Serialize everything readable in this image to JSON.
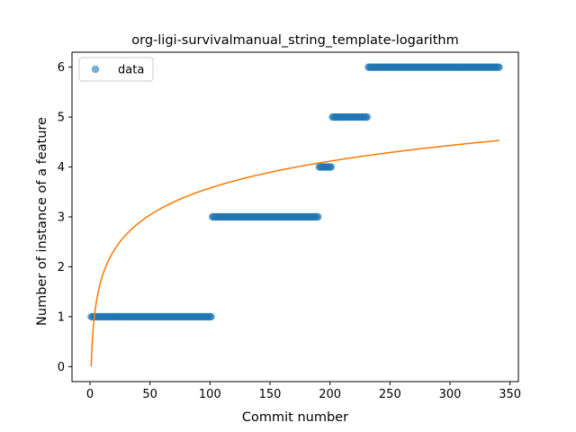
{
  "chart_data": {
    "type": "scatter",
    "title": "org-ligi-survivalmanual_string_template-logarithm",
    "xlabel": "Commit number",
    "ylabel": "Number of instance of a feature",
    "xlim": [
      -15,
      357
    ],
    "ylim": [
      -0.3,
      6.3
    ],
    "xticks": [
      0,
      50,
      100,
      150,
      200,
      250,
      300,
      350
    ],
    "yticks": [
      0,
      1,
      2,
      3,
      4,
      5,
      6
    ],
    "grid": false,
    "legend": {
      "placement": "top-left",
      "entries": [
        "data"
      ]
    },
    "series": [
      {
        "name": "data",
        "kind": "scatter",
        "color": "#1f77b4",
        "segments": [
          {
            "x_start": 1,
            "x_end": 101,
            "y": 1
          },
          {
            "x_start": 102,
            "x_end": 190,
            "y": 3
          },
          {
            "x_start": 191,
            "x_end": 201,
            "y": 4
          },
          {
            "x_start": 202,
            "x_end": 231,
            "y": 5
          },
          {
            "x_start": 232,
            "x_end": 341,
            "y": 6
          }
        ]
      },
      {
        "kind": "line",
        "color": "#ff7f0e",
        "model": "y = 0.777 * ln(x)",
        "x_range": [
          1,
          341
        ]
      }
    ]
  }
}
